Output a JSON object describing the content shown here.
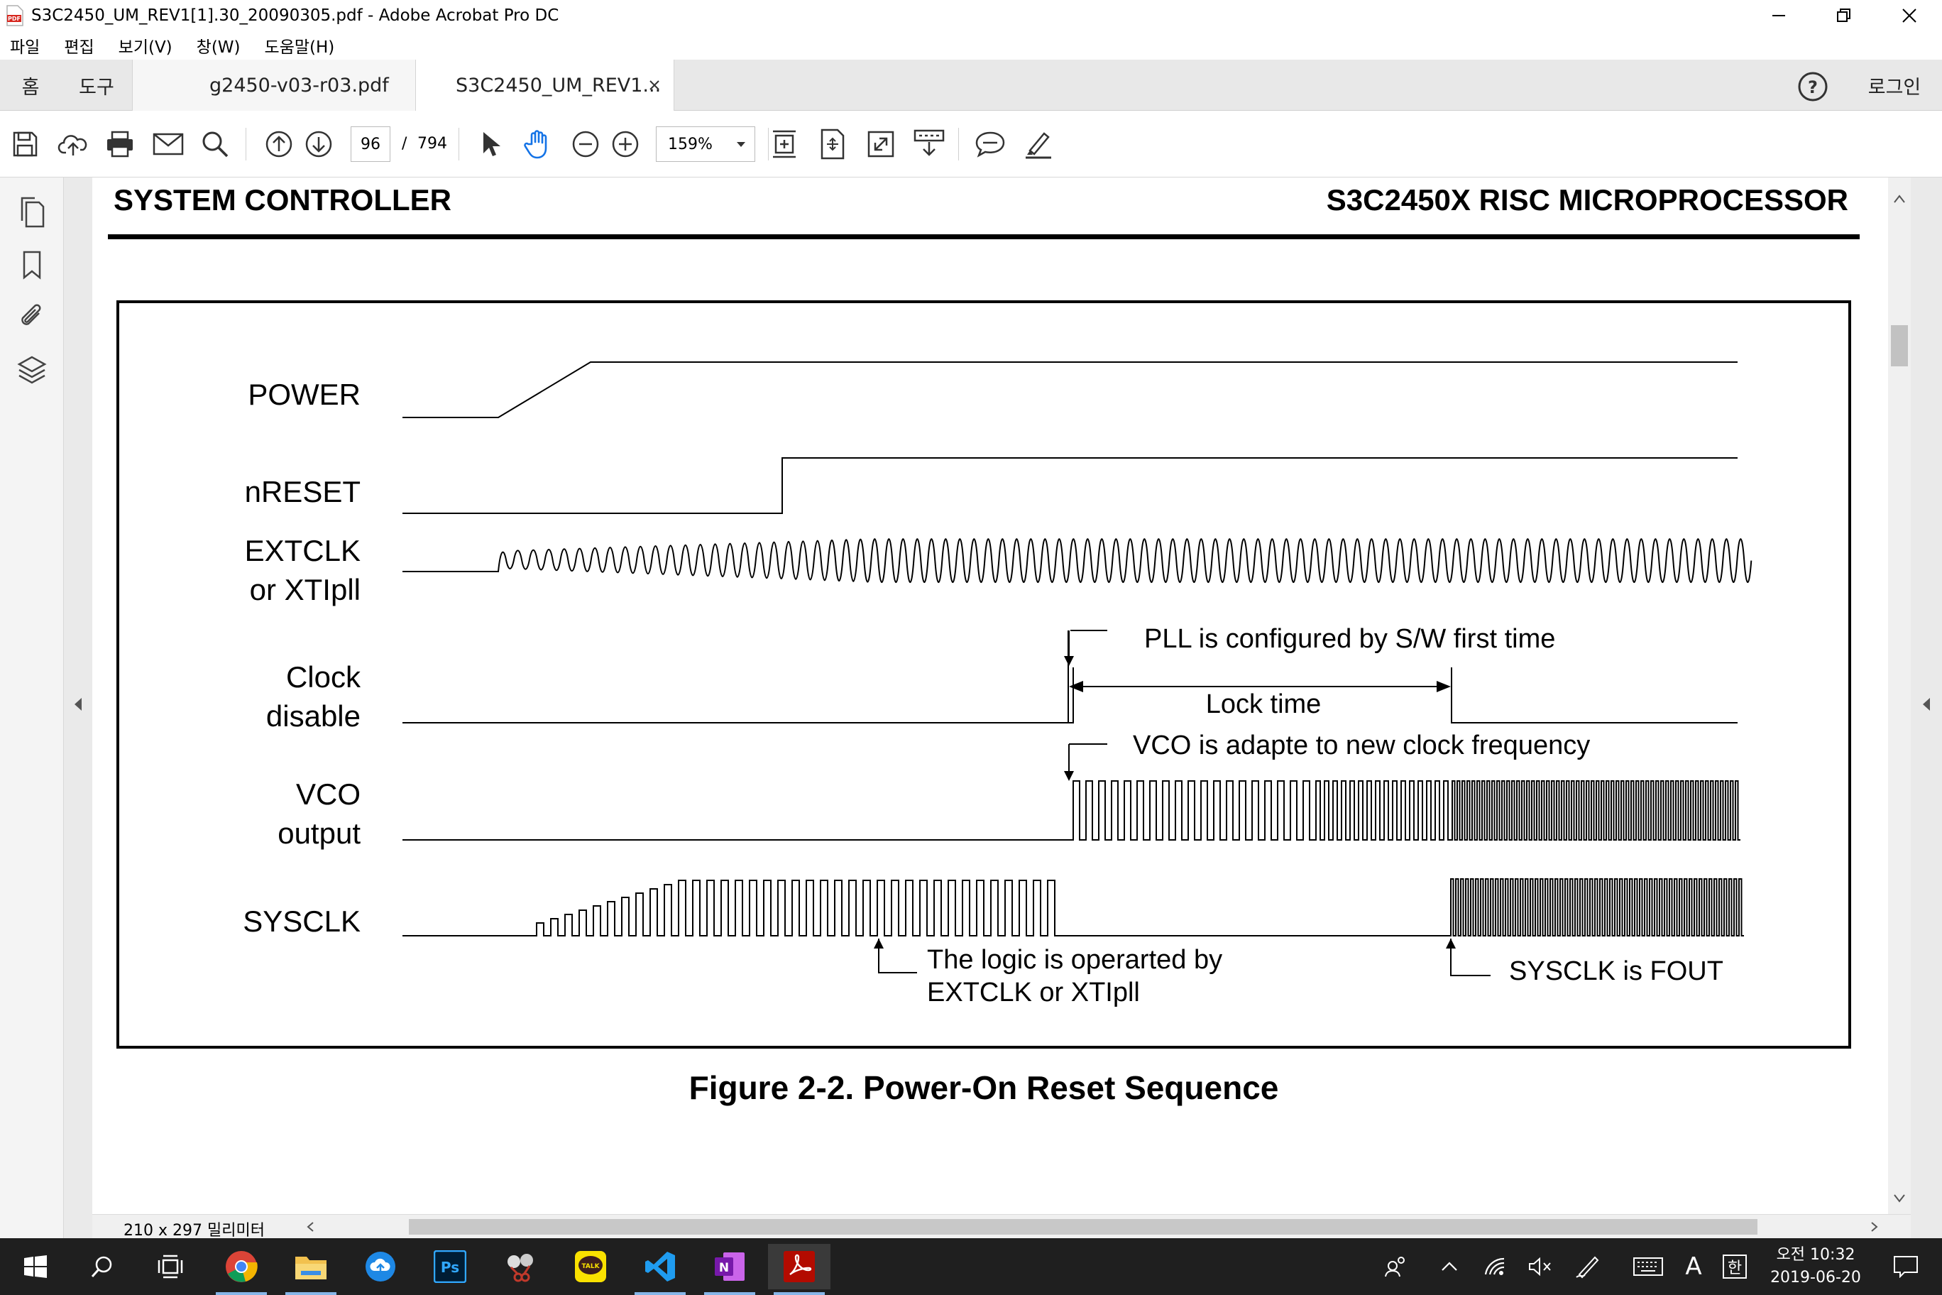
{
  "window": {
    "title": "S3C2450_UM_REV1[1].30_20090305.pdf - Adobe Acrobat Pro DC"
  },
  "menu": {
    "items": [
      "파일",
      "편집",
      "보기(V)",
      "창(W)",
      "도움말(H)"
    ]
  },
  "tabs": {
    "home": "홈",
    "tools": "도구",
    "documents": [
      {
        "label": "g2450-v03-r03.pdf",
        "active": false
      },
      {
        "label": "S3C2450_UM_REV1...",
        "active": true
      }
    ],
    "login": "로그인"
  },
  "toolbar": {
    "page_current": "96",
    "page_separator": "/",
    "page_total": "794",
    "zoom": "159%"
  },
  "document": {
    "header_left": "SYSTEM CONTROLLER",
    "header_right": "S3C2450X RISC MICROPROCESSOR",
    "figure": {
      "signals": {
        "power": "POWER",
        "nreset": "nRESET",
        "extclk_1": "EXTCLK",
        "extclk_2": "or XTIpll",
        "clock_1": "Clock",
        "clock_2": "disable",
        "vco_1": "VCO",
        "vco_2": "output",
        "sysclk": "SYSCLK"
      },
      "annotations": {
        "pll_config": "PLL is configured by S/W first time",
        "lock_time": "Lock time",
        "vco_adapt": "VCO is adapte to new clock frequency",
        "logic_1": "The logic is operarted by",
        "logic_2": "EXTCLK or XTIpll",
        "sysclk_fout": "SYSCLK is FOUT"
      },
      "caption": "Figure 2-2. Power-On Reset Sequence"
    }
  },
  "statusbar": {
    "page_size": "210 x 297 밀리미터"
  },
  "taskbar": {
    "clock_period": "오전 10:32",
    "date": "2019-06-20",
    "ime_label": "A",
    "ime_mode": "한"
  }
}
